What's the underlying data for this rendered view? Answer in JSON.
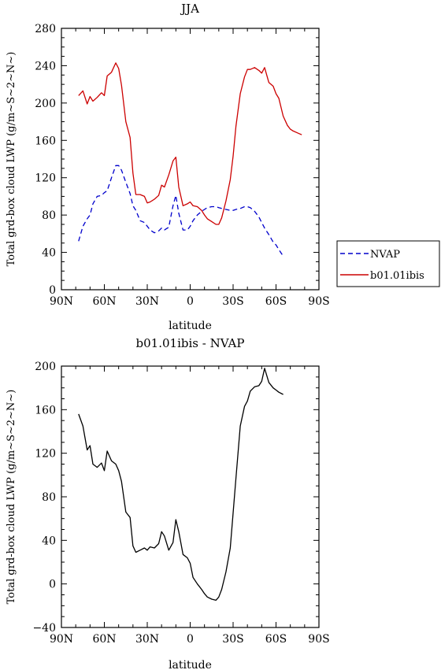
{
  "chart_data": [
    {
      "type": "line",
      "title": "JJA",
      "xlabel": "latitude",
      "ylabel": "Total grd-box cloud LWP (g/m~S~2~N~)",
      "xlim": [
        90,
        -90
      ],
      "ylim": [
        0,
        280
      ],
      "x_ticks": [
        90,
        60,
        30,
        0,
        -30,
        -60,
        -90
      ],
      "x_tick_labels": [
        "90N",
        "60N",
        "30N",
        "0",
        "30S",
        "60S",
        "90S"
      ],
      "y_ticks": [
        0,
        40,
        80,
        120,
        160,
        200,
        240,
        280
      ],
      "y_tick_labels": [
        "0",
        "40",
        "80",
        "120",
        "160",
        "200",
        "240",
        "280"
      ],
      "legend_position": "outside-right",
      "series": [
        {
          "name": "NVAP",
          "color": "#0000cc",
          "dash": "dashed",
          "x": [
            78,
            75,
            72,
            70,
            68,
            65,
            62,
            60,
            58,
            55,
            52,
            50,
            48,
            45,
            42,
            40,
            38,
            35,
            32,
            30,
            28,
            25,
            22,
            20,
            18,
            15,
            12,
            10,
            8,
            5,
            2,
            0,
            -2,
            -5,
            -8,
            -10,
            -12,
            -15,
            -18,
            -20,
            -22,
            -25,
            -28,
            -30,
            -32,
            -35,
            -38,
            -40,
            -42,
            -45,
            -48,
            -50,
            -52,
            -55,
            -58,
            -60,
            -62,
            -65
          ],
          "y": [
            52,
            68,
            76,
            80,
            92,
            100,
            101,
            104,
            106,
            120,
            133,
            133,
            128,
            115,
            103,
            90,
            85,
            74,
            72,
            68,
            64,
            61,
            63,
            66,
            64,
            67,
            90,
            101,
            82,
            64,
            64,
            68,
            74,
            80,
            84,
            86,
            88,
            89,
            89,
            88,
            87,
            86,
            85,
            85,
            86,
            87,
            89,
            89,
            88,
            84,
            78,
            72,
            66,
            59,
            51,
            48,
            43,
            36
          ]
        },
        {
          "name": "b01.01ibis",
          "color": "#cc0000",
          "dash": "solid",
          "x": [
            78,
            75,
            72,
            70,
            68,
            65,
            62,
            60,
            58,
            55,
            52,
            50,
            48,
            45,
            42,
            40,
            38,
            35,
            32,
            30,
            28,
            25,
            22,
            20,
            18,
            15,
            12,
            10,
            8,
            5,
            2,
            0,
            -2,
            -5,
            -8,
            -10,
            -12,
            -15,
            -18,
            -20,
            -22,
            -25,
            -28,
            -30,
            -32,
            -35,
            -38,
            -40,
            -42,
            -45,
            -48,
            -50,
            -52,
            -55,
            -58,
            -60,
            -62,
            -65,
            -68,
            -70,
            -72,
            -75,
            -78
          ],
          "y": [
            208,
            213,
            199,
            207,
            202,
            206,
            211,
            208,
            229,
            233,
            243,
            237,
            219,
            180,
            163,
            125,
            102,
            102,
            100,
            93,
            94,
            97,
            101,
            112,
            110,
            123,
            138,
            142,
            110,
            90,
            92,
            94,
            90,
            89,
            85,
            80,
            76,
            73,
            70,
            70,
            77,
            95,
            118,
            143,
            175,
            210,
            228,
            236,
            236,
            238,
            235,
            232,
            238,
            222,
            218,
            210,
            205,
            186,
            176,
            172,
            170,
            168,
            166
          ]
        }
      ]
    },
    {
      "type": "line",
      "title": "b01.01ibis - NVAP",
      "xlabel": "latitude",
      "ylabel": "Total grd-box cloud LWP (g/m~S~2~N~)",
      "xlim": [
        90,
        -90
      ],
      "ylim": [
        -40,
        200
      ],
      "x_ticks": [
        90,
        60,
        30,
        0,
        -30,
        -60,
        -90
      ],
      "x_tick_labels": [
        "90N",
        "60N",
        "30N",
        "0",
        "30S",
        "60S",
        "90S"
      ],
      "y_ticks": [
        -40,
        0,
        40,
        80,
        120,
        160,
        200
      ],
      "y_tick_labels": [
        "−40",
        "0",
        "40",
        "80",
        "120",
        "160",
        "200"
      ],
      "series": [
        {
          "name": "",
          "color": "#000000",
          "dash": "solid",
          "x": [
            78,
            75,
            72,
            70,
            68,
            65,
            62,
            60,
            58,
            55,
            52,
            50,
            48,
            45,
            42,
            40,
            38,
            35,
            32,
            30,
            28,
            25,
            22,
            20,
            18,
            15,
            12,
            10,
            8,
            5,
            2,
            0,
            -2,
            -5,
            -8,
            -10,
            -12,
            -15,
            -18,
            -20,
            -22,
            -25,
            -28,
            -30,
            -32,
            -35,
            -38,
            -40,
            -42,
            -45,
            -48,
            -50,
            -52,
            -55,
            -58,
            -60,
            -62,
            -65
          ],
          "y": [
            156,
            145,
            123,
            127,
            110,
            107,
            111,
            104,
            122,
            113,
            110,
            104,
            94,
            66,
            61,
            35,
            29,
            31,
            33,
            31,
            34,
            33,
            37,
            48,
            44,
            31,
            38,
            59,
            48,
            27,
            24,
            19,
            6,
            0,
            -5,
            -9,
            -12,
            -14,
            -15,
            -12,
            -5,
            11,
            33,
            65,
            97,
            145,
            163,
            168,
            177,
            181,
            182,
            186,
            198,
            185,
            180,
            178,
            176,
            174
          ]
        }
      ]
    }
  ],
  "legend_title_note": "",
  "labels": {
    "legend_nvap": "NVAP",
    "legend_model": "b01.01ibis"
  }
}
